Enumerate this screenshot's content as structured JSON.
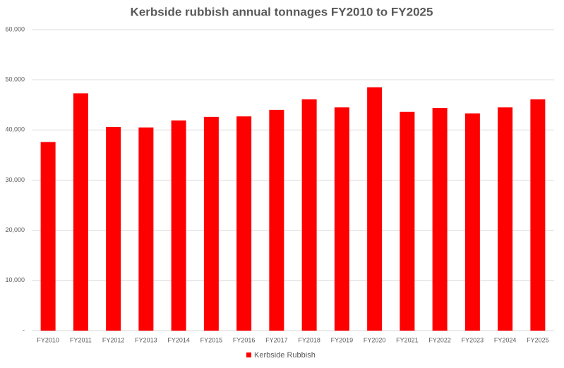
{
  "chart_data": {
    "type": "bar",
    "title": "Kerbside rubbish annual tonnages FY2010 to FY2025",
    "categories": [
      "FY2010",
      "FY2011",
      "FY2012",
      "FY2013",
      "FY2014",
      "FY2015",
      "FY2016",
      "FY2017",
      "FY2018",
      "FY2019",
      "FY2020",
      "FY2021",
      "FY2022",
      "FY2023",
      "FY2024",
      "FY2025"
    ],
    "series": [
      {
        "name": "Kerbside Rubbish",
        "color": "#ff0000",
        "values": [
          37600,
          47300,
          40600,
          40500,
          41900,
          42600,
          42700,
          44000,
          46100,
          44500,
          48500,
          43600,
          44400,
          43300,
          44500,
          46100
        ]
      }
    ],
    "ylim": [
      0,
      60000
    ],
    "yticks": [
      {
        "value": 0,
        "label": "-"
      },
      {
        "value": 10000,
        "label": "10,000"
      },
      {
        "value": 20000,
        "label": "20,000"
      },
      {
        "value": 30000,
        "label": "30,000"
      },
      {
        "value": 40000,
        "label": "40,000"
      },
      {
        "value": 50000,
        "label": "50,000"
      },
      {
        "value": 60000,
        "label": "60,000"
      }
    ],
    "grid": true,
    "legend": "bottom"
  }
}
